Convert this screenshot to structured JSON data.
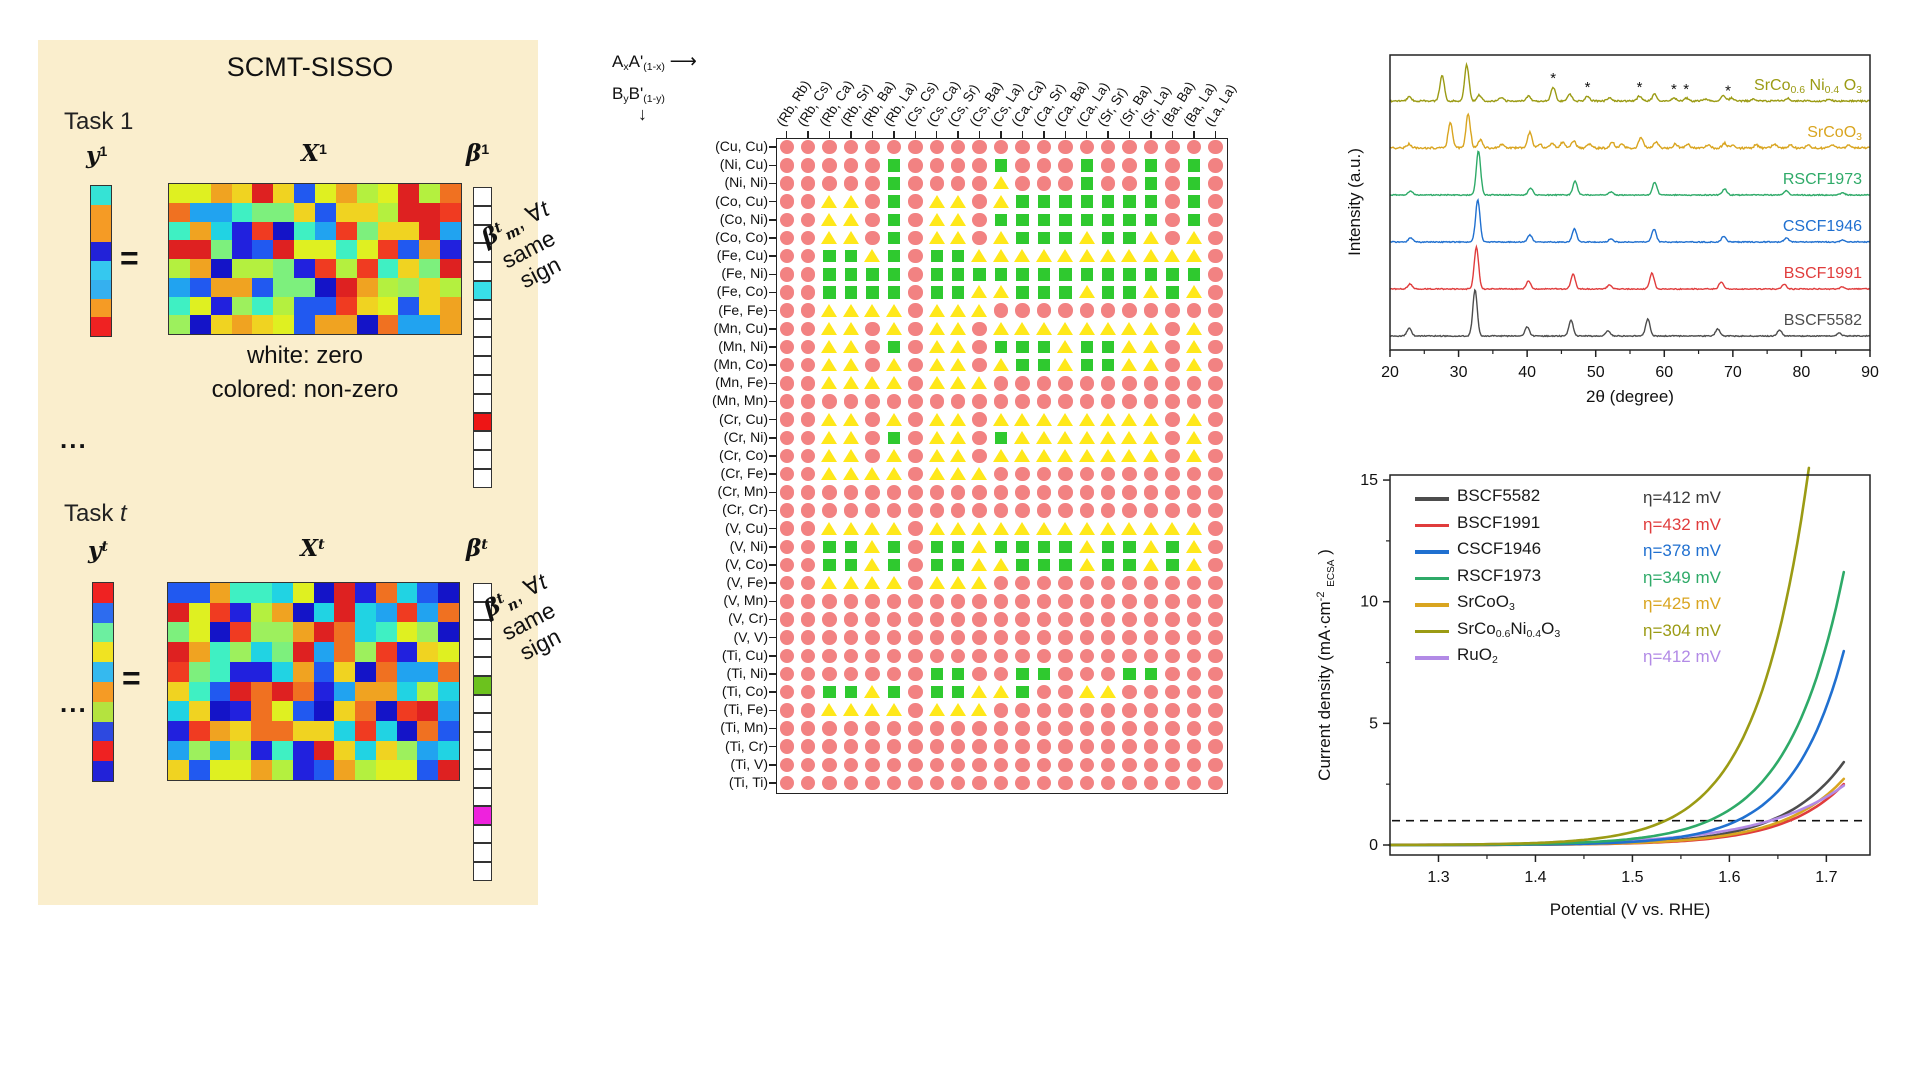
{
  "left_panel": {
    "bg": "#faeecd",
    "title": "SCMT-SISSO",
    "equals": "=",
    "ellipsis": "...",
    "note_white": "white: zero",
    "note_colored": "colored: non-zero",
    "matrix_palette": [
      "#2121de",
      "#2159f0",
      "#21a3f0",
      "#21d3e3",
      "#3ff0c3",
      "#7df07d",
      "#b4f03f",
      "#dff021",
      "#f0d321",
      "#f0a321",
      "#f07121",
      "#f03b21",
      "#de2121",
      "#9df05d",
      "#1414c8"
    ],
    "tasks": [
      {
        "name": "Task 1",
        "name_segments": [
          {
            "t": "Task 1"
          }
        ],
        "y_header": [
          {
            "t": "y",
            "mi": true
          },
          {
            "t": "1",
            "sup": true
          }
        ],
        "x_header": [
          {
            "t": "X",
            "mi": true
          },
          {
            "t": "1",
            "sup": true
          }
        ],
        "beta_header": [
          {
            "t": "β",
            "mi": true
          },
          {
            "t": "1",
            "sup": true
          }
        ],
        "y_colors": [
          "#35e3d5",
          "#f59b25",
          "#f59b25",
          "#2222d8",
          "#35c8ef",
          "#35b0ef",
          "#f59b25",
          "#ef2222"
        ],
        "matrix": {
          "rows": 8,
          "cols": 14,
          "seed": 11
        },
        "beta": {
          "cells": 16,
          "colored": [
            {
              "index": 5,
              "color": "#38dfe8"
            },
            {
              "index": 12,
              "color": "#ee1515"
            }
          ]
        },
        "note_segments": [
          {
            "t": "β",
            "mi": true
          },
          {
            "t": "t",
            "sup": true,
            "mi": true
          },
          {
            "t": "m",
            "sub": true,
            "mi": true
          },
          {
            "t": ", ∀"
          },
          {
            "t": "t",
            "it": true
          }
        ],
        "note_line2": "same",
        "note_line3": "sign"
      },
      {
        "name": "Task t",
        "name_segments": [
          {
            "t": "Task "
          },
          {
            "t": "t",
            "it": true
          }
        ],
        "y_header": [
          {
            "t": "y",
            "mi": true
          },
          {
            "t": "t",
            "sup": true,
            "mi": true
          }
        ],
        "x_header": [
          {
            "t": "X",
            "mi": true
          },
          {
            "t": "t",
            "sup": true,
            "mi": true
          }
        ],
        "beta_header": [
          {
            "t": "β",
            "mi": true
          },
          {
            "t": "t",
            "sup": true,
            "mi": true
          }
        ],
        "y_colors": [
          "#ef2222",
          "#2d6cef",
          "#6cefa0",
          "#f0e322",
          "#35b9ef",
          "#f59b25",
          "#b4e33f",
          "#2d49e0",
          "#ef2222",
          "#2222d8"
        ],
        "matrix": {
          "rows": 10,
          "cols": 14,
          "seed": 23
        },
        "beta": {
          "cells": 16,
          "colored": [
            {
              "index": 5,
              "color": "#6cc21e"
            },
            {
              "index": 12,
              "color": "#ee22dd"
            }
          ]
        },
        "note_segments": [
          {
            "t": "β",
            "mi": true
          },
          {
            "t": "t",
            "sup": true,
            "mi": true
          },
          {
            "t": "n",
            "sub": true,
            "mi": true
          },
          {
            "t": ", ∀"
          },
          {
            "t": "t",
            "it": true
          }
        ],
        "note_line2": "same",
        "note_line3": "sign"
      }
    ]
  },
  "matrix_plot": {
    "a_header": [
      {
        "t": "A"
      },
      {
        "t": "x",
        "sub": true
      },
      {
        "t": "A'"
      },
      {
        "t": "(1-x)",
        "sub": true
      }
    ],
    "b_header": [
      {
        "t": "B"
      },
      {
        "t": "y",
        "sub": true
      },
      {
        "t": "B'"
      },
      {
        "t": "(1-y)",
        "sub": true
      }
    ],
    "arrow_right": "⟶",
    "arrow_down": "↓",
    "marker_colors": {
      "r": "#f28282",
      "g": "#2fc92f",
      "y": "#ffe81a"
    }
  },
  "chart_data": [
    {
      "type": "heatmap",
      "description": "element-pair coefficient sign map; red circle / green square / yellow triangle",
      "x_categories": [
        "(Rb, Rb)",
        "(Rb, Cs)",
        "(Rb, Ca)",
        "(Rb, Sr)",
        "(Rb, Ba)",
        "(Rb, La)",
        "(Cs, Cs)",
        "(Cs, Ca)",
        "(Cs, Sr)",
        "(Cs, Ba)",
        "(Cs, La)",
        "(Ca, Ca)",
        "(Ca, Sr)",
        "(Ca, Ba)",
        "(Ca, La)",
        "(Sr, Sr)",
        "(Sr, Ba)",
        "(Sr, La)",
        "(Ba, Ba)",
        "(Ba, La)",
        "(La, La)"
      ],
      "y_categories": [
        "(Cu, Cu)",
        "(Ni, Cu)",
        "(Ni, Ni)",
        "(Co, Cu)",
        "(Co, Ni)",
        "(Co, Co)",
        "(Fe, Cu)",
        "(Fe, Ni)",
        "(Fe, Co)",
        "(Fe, Fe)",
        "(Mn, Cu)",
        "(Mn, Ni)",
        "(Mn, Co)",
        "(Mn, Fe)",
        "(Mn, Mn)",
        "(Cr, Cu)",
        "(Cr, Ni)",
        "(Cr, Co)",
        "(Cr, Fe)",
        "(Cr, Mn)",
        "(Cr, Cr)",
        "(V, Cu)",
        "(V, Ni)",
        "(V, Co)",
        "(V, Fe)",
        "(V, Mn)",
        "(V, Cr)",
        "(V, V)",
        "(Ti, Cu)",
        "(Ti, Ni)",
        "(Ti, Co)",
        "(Ti, Fe)",
        "(Ti, Mn)",
        "(Ti, Cr)",
        "(Ti, V)",
        "(Ti, Ti)"
      ],
      "symbols": {
        "r": "red-circle",
        "g": "green-square",
        "y": "yellow-triangle"
      },
      "values": [
        "rrrrrrrrrrrrrrrrrrrrr",
        "rrrrrgrrrrgrrrgrrgrgr",
        "rrrrrgrrrryrrrgrrgrgr",
        "rryyrgryyrygggggggrgr",
        "rryyrgryyrggggggggrgr",
        "rryyrgryyrygggyggyryr",
        "rrggygrggyyyyyyyyyyyr",
        "rrggggrgggggggggggggr",
        "rrggggrggyygggyggygyr",
        "rryyyyryyyrrrrrrrrrrr",
        "rryyryryyryyyyyyyyryr",
        "rryyrgryyrgggyggyyryr",
        "rryyryryyryggyggyyryr",
        "rryyyyryyyrrrrrrrrrrr",
        "rrrrrrrrrrrrrrrrrrrrr",
        "rryyryryyryyyyyyyyryr",
        "rryyrgryyrgyyyyyyyryr",
        "rryyryryyryyyyyyyyryr",
        "rryyyyryyyrrrrrrrrrrr",
        "rrrrrrrrrrrrrrrrrrrrr",
        "rrrrrrrrrrrrrrrrrrrrr",
        "rryyyyryyyyyyyyyyyyyr",
        "rrggygrggyggggyggygyr",
        "rrggygrggyygggyggygyr",
        "rryyyyryyyrrrrrrrrrrr",
        "rrrrrrrrrrrrrrrrrrrrr",
        "rrrrrrrrrrrrrrrrrrrrr",
        "rrrrrrrrrrrrrrrrrrrrr",
        "rrrrrrrrrrrrrrrrrrrrr",
        "rrrrrrrggrrggrrrggrrr",
        "rrggygrggyygrryyrrrrr",
        "rryyyyryyyrrrrrrrrrrr",
        "rrrrrrrrrrrrrrrrrrrrr",
        "rrrrrrrrrrrrrrrrrrrrr",
        "rrrrrrrrrrrrrrrrrrrrr",
        "rrrrrrrrrrrrrrrrrrrrr"
      ]
    },
    {
      "type": "line",
      "name": "xrd",
      "xlabel": "2θ (degree)",
      "ylabel": "Intensity (a.u.)",
      "xlim": [
        20,
        90
      ],
      "xticks": [
        20,
        30,
        40,
        50,
        60,
        70,
        80,
        90
      ],
      "series": [
        {
          "name": "SrCo0.6Ni0.4O3",
          "label": [
            {
              "t": "SrCo"
            },
            {
              "t": "0.6",
              "sub": true
            },
            {
              "t": "Ni"
            },
            {
              "t": "0.4",
              "sub": true
            },
            {
              "t": "O"
            },
            {
              "t": "3",
              "sub": true
            }
          ],
          "color": "#9b9b14",
          "noise": 1.6,
          "peaks": [
            [
              22.8,
              4
            ],
            [
              27.6,
              26
            ],
            [
              31.2,
              36
            ],
            [
              33.0,
              6
            ],
            [
              36.2,
              3
            ],
            [
              40.2,
              5
            ],
            [
              43.8,
              14
            ],
            [
              46.2,
              7
            ],
            [
              48.8,
              5
            ],
            [
              52.0,
              3
            ],
            [
              56.4,
              5
            ],
            [
              58.6,
              7
            ],
            [
              61.4,
              3
            ],
            [
              63.2,
              3
            ],
            [
              66.0,
              2
            ],
            [
              68.6,
              6
            ],
            [
              69.8,
              3
            ],
            [
              73.0,
              2
            ],
            [
              78.0,
              3
            ],
            [
              84.0,
              2
            ]
          ],
          "asterisks": [
            43.8,
            48.8,
            56.4,
            61.4,
            63.2,
            69.3
          ]
        },
        {
          "name": "SrCoO3",
          "label": [
            {
              "t": "SrCoO"
            },
            {
              "t": "3",
              "sub": true
            }
          ],
          "color": "#d9a520",
          "noise": 2.0,
          "peaks": [
            [
              22.8,
              4
            ],
            [
              28.8,
              26
            ],
            [
              31.4,
              34
            ],
            [
              33.2,
              8
            ],
            [
              36.4,
              4
            ],
            [
              40.4,
              16
            ],
            [
              41.8,
              4
            ],
            [
              43.6,
              5
            ],
            [
              45.2,
              6
            ],
            [
              46.8,
              7
            ],
            [
              49.0,
              4
            ],
            [
              52.4,
              6
            ],
            [
              53.8,
              4
            ],
            [
              56.6,
              11
            ],
            [
              58.8,
              6
            ],
            [
              61.6,
              4
            ],
            [
              63.4,
              4
            ],
            [
              66.4,
              3
            ],
            [
              68.8,
              5
            ],
            [
              70.0,
              3
            ],
            [
              73.4,
              3
            ],
            [
              76.0,
              4
            ],
            [
              78.4,
              3
            ],
            [
              81.0,
              3
            ],
            [
              84.4,
              3
            ],
            [
              87.0,
              3
            ]
          ],
          "asterisks": []
        },
        {
          "name": "RSCF1973",
          "label": [
            {
              "t": "RSCF1973"
            }
          ],
          "color": "#2eaa68",
          "noise": 1.0,
          "peaks": [
            [
              23.0,
              4
            ],
            [
              32.9,
              44
            ],
            [
              40.5,
              7
            ],
            [
              47.0,
              14
            ],
            [
              52.2,
              3
            ],
            [
              58.6,
              13
            ],
            [
              68.8,
              6
            ],
            [
              77.8,
              4
            ],
            [
              86.0,
              2
            ]
          ],
          "asterisks": []
        },
        {
          "name": "CSCF1946",
          "label": [
            {
              "t": "CSCF1946"
            }
          ],
          "color": "#2070d0",
          "noise": 1.0,
          "peaks": [
            [
              23.0,
              4
            ],
            [
              32.8,
              42
            ],
            [
              40.4,
              7
            ],
            [
              46.9,
              13
            ],
            [
              52.2,
              3
            ],
            [
              58.5,
              13
            ],
            [
              68.7,
              6
            ],
            [
              77.8,
              4
            ],
            [
              86.0,
              2
            ]
          ],
          "asterisks": []
        },
        {
          "name": "BSCF1991",
          "label": [
            {
              "t": "BSCF1991"
            }
          ],
          "color": "#e03c3c",
          "noise": 1.0,
          "peaks": [
            [
              22.9,
              5
            ],
            [
              32.6,
              42
            ],
            [
              40.2,
              8
            ],
            [
              46.7,
              15
            ],
            [
              52.0,
              4
            ],
            [
              58.2,
              16
            ],
            [
              68.3,
              7
            ],
            [
              77.5,
              5
            ],
            [
              86.0,
              2
            ]
          ],
          "asterisks": []
        },
        {
          "name": "BSCF5582",
          "label": [
            {
              "t": "BSCF5582"
            }
          ],
          "color": "#4d4d4d",
          "noise": 1.0,
          "peaks": [
            [
              22.8,
              8
            ],
            [
              32.4,
              46
            ],
            [
              40.0,
              9
            ],
            [
              46.4,
              16
            ],
            [
              51.8,
              5
            ],
            [
              57.6,
              17
            ],
            [
              67.8,
              7
            ],
            [
              76.8,
              6
            ],
            [
              85.5,
              3
            ]
          ],
          "asterisks": []
        }
      ]
    },
    {
      "type": "line",
      "name": "lsv",
      "xlabel": "Potential (V vs. RHE)",
      "ylabel": "Current density (mA·cm⁻²ECSA)",
      "ylabel_segments": [
        {
          "t": "Current density (mA·cm"
        },
        {
          "t": "-2",
          "sup": true
        },
        {
          "t": "ECSA",
          "sub": true
        },
        {
          "t": ")"
        }
      ],
      "xlim": [
        1.25,
        1.745
      ],
      "ylim": [
        0,
        15
      ],
      "xticks": [
        1.3,
        1.4,
        1.5,
        1.6,
        1.7
      ],
      "yticks": [
        0,
        5,
        10,
        15
      ],
      "dashed_line_y": 1,
      "series": [
        {
          "name": "BSCF5582",
          "label": [
            {
              "t": "BSCF5582"
            }
          ],
          "color": "#4d4d4d",
          "eta_label": "η=412 mV",
          "eta_color": "#3a3a3a",
          "overpotential_mV": 412,
          "v_at_1mA": 1.642,
          "b": 0.062,
          "j_at_1p72V": 3.5
        },
        {
          "name": "BSCF1991",
          "label": [
            {
              "t": "BSCF1991"
            }
          ],
          "color": "#e03c3c",
          "eta_label": "η=432 mV",
          "eta_color": "#e03c3c",
          "overpotential_mV": 432,
          "v_at_1mA": 1.662,
          "b": 0.061,
          "j_at_1p72V": 2.6
        },
        {
          "name": "CSCF1946",
          "label": [
            {
              "t": "CSCF1946"
            }
          ],
          "color": "#2070d0",
          "eta_label": "η=378 mV",
          "eta_color": "#2070d0",
          "overpotential_mV": 378,
          "v_at_1mA": 1.608,
          "b": 0.053,
          "j_at_1p72V": 8.3
        },
        {
          "name": "RSCF1973",
          "label": [
            {
              "t": "RSCF1973"
            }
          ],
          "color": "#2eaa68",
          "eta_label": "η=349 mV",
          "eta_color": "#2eaa68",
          "overpotential_mV": 349,
          "v_at_1mA": 1.579,
          "b": 0.0575,
          "j_at_1p72V": 11.6
        },
        {
          "name": "SrCoO3",
          "label": [
            {
              "t": "SrCoO"
            },
            {
              "t": "3",
              "sub": true
            }
          ],
          "color": "#d9a520",
          "eta_label": "η=425 mV",
          "eta_color": "#d9a520",
          "overpotential_mV": 425,
          "v_at_1mA": 1.655,
          "b": 0.063,
          "j_at_1p72V": 2.8
        },
        {
          "name": "SrCo0.6Ni0.4O3",
          "label": [
            {
              "t": "SrCo"
            },
            {
              "t": "0.6",
              "sub": true
            },
            {
              "t": "Ni"
            },
            {
              "t": "0.4",
              "sub": true
            },
            {
              "t": "O"
            },
            {
              "t": "3",
              "sub": true
            }
          ],
          "color": "#9b9b14",
          "eta_label": "η=304 mV",
          "eta_color": "#9b9b14",
          "overpotential_mV": 304,
          "v_at_1mA": 1.534,
          "b": 0.054,
          "j_at_1p72V": 15
        },
        {
          "name": "RuO2",
          "label": [
            {
              "t": "RuO"
            },
            {
              "t": "2",
              "sub": true
            }
          ],
          "color": "#b28ae6",
          "eta_label": "η=412 mV",
          "eta_color": "#b28ae6",
          "overpotential_mV": 412,
          "v_at_1mA": 1.642,
          "b": 0.085,
          "j_at_1p72V": 2.5
        }
      ]
    }
  ]
}
